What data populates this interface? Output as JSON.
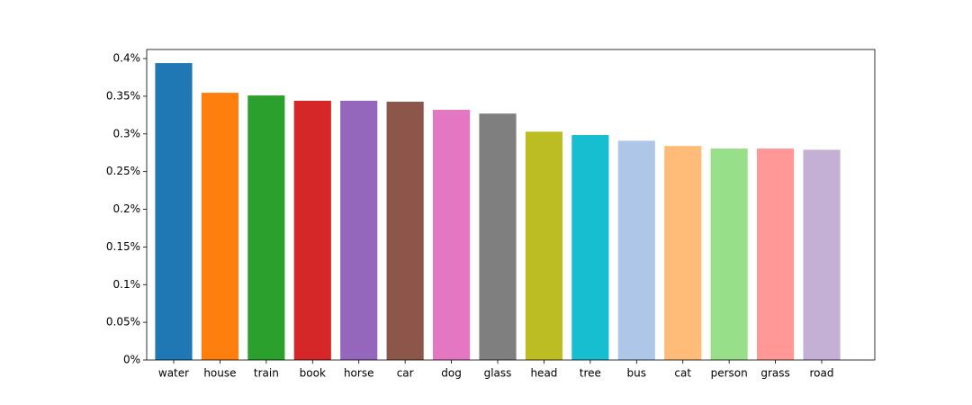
{
  "chart_data": {
    "type": "bar",
    "categories": [
      "water",
      "house",
      "train",
      "book",
      "horse",
      "car",
      "dog",
      "glass",
      "head",
      "tree",
      "bus",
      "cat",
      "person",
      "grass",
      "road"
    ],
    "values": [
      0.394,
      0.3546,
      0.351,
      0.344,
      0.344,
      0.3427,
      0.332,
      0.327,
      0.303,
      0.2985,
      0.291,
      0.284,
      0.2806,
      0.2806,
      0.279
    ],
    "colors": [
      "#1f77b4",
      "#ff7f0e",
      "#2ca02c",
      "#d62728",
      "#9467bd",
      "#8c564b",
      "#e377c2",
      "#7f7f7f",
      "#bcbd22",
      "#17becf",
      "#aec7e8",
      "#ffbb78",
      "#98df8a",
      "#ff9896",
      "#c5b0d5"
    ],
    "ylim": [
      0,
      0.412
    ],
    "yticks": [
      {
        "value": 0,
        "label": "0%"
      },
      {
        "value": 0.05,
        "label": "0.05%"
      },
      {
        "value": 0.1,
        "label": "0.1%"
      },
      {
        "value": 0.15,
        "label": "0.15%"
      },
      {
        "value": 0.2,
        "label": "0.2%"
      },
      {
        "value": 0.25,
        "label": "0.25%"
      },
      {
        "value": 0.3,
        "label": "0.3%"
      },
      {
        "value": 0.35,
        "label": "0.35%"
      },
      {
        "value": 0.4,
        "label": "0.4%"
      }
    ]
  }
}
